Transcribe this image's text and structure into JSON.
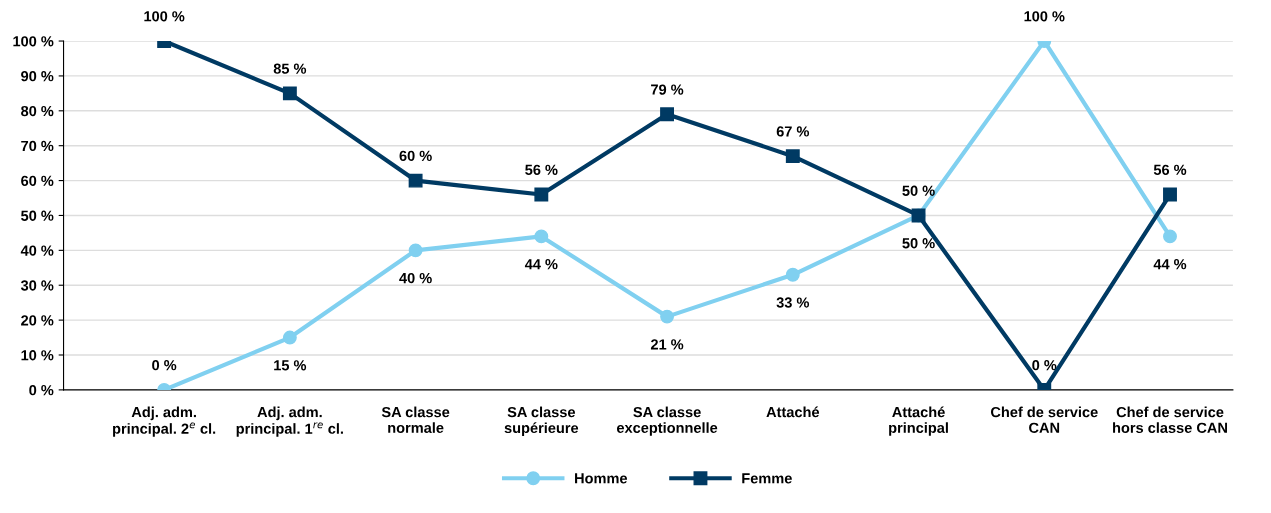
{
  "chart_data": {
    "type": "line",
    "categories": [
      "Adj. adm.\nprincipal. 2$^{e}$ cl.",
      "Adj. adm.\nprincipal. 1$^{re}$ cl.",
      "SA classe\nnormale",
      "SA classe\nsupérieure",
      "SA classe\nexceptionnelle",
      "Attaché",
      "Attaché\nprincipal",
      "Chef de service\nCAN",
      "Chef de service\nhors classe CAN"
    ],
    "series": [
      {
        "name": "Homme",
        "color": "#80d0f0",
        "marker": "circle",
        "values": [
          0,
          15,
          40,
          44,
          21,
          33,
          50,
          100,
          44
        ],
        "value_labels": [
          "0 %",
          "15 %",
          "40 %",
          "44 %",
          "21 %",
          "33 %",
          "50 %",
          "100 %",
          "44 %"
        ]
      },
      {
        "name": "Femme",
        "color": "#003a63",
        "marker": "square",
        "values": [
          100,
          85,
          60,
          56,
          79,
          67,
          50,
          0,
          56
        ],
        "value_labels": [
          "100 %",
          "85 %",
          "60 %",
          "56 %",
          "79 %",
          "67 %",
          "50 %",
          "0 %",
          "56 %"
        ]
      }
    ],
    "ylim": [
      0,
      100
    ],
    "yticks": [
      {
        "value": 0,
        "label": "0 %"
      },
      {
        "value": 10,
        "label": "10 %"
      },
      {
        "value": 20,
        "label": "20 %"
      },
      {
        "value": 30,
        "label": "30 %"
      },
      {
        "value": 40,
        "label": "40 %"
      },
      {
        "value": 50,
        "label": "50 %"
      },
      {
        "value": 60,
        "label": "60 %"
      },
      {
        "value": 70,
        "label": "70 %"
      },
      {
        "value": 80,
        "label": "80 %"
      },
      {
        "value": 90,
        "label": "90 %"
      },
      {
        "value": 100,
        "label": "100 %"
      }
    ],
    "grid": "y",
    "legend": "bottom",
    "line_style": "solid"
  }
}
